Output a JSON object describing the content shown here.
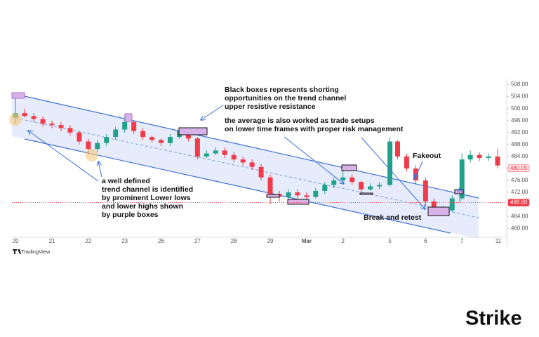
{
  "chart_data": {
    "type": "candlestick",
    "xlim": [
      -0.1,
      13.5
    ],
    "ylim": [
      457,
      510
    ],
    "xticks": [
      {
        "value": 0,
        "label": "20"
      },
      {
        "value": 1,
        "label": "21"
      },
      {
        "value": 2,
        "label": "22"
      },
      {
        "value": 3,
        "label": "23"
      },
      {
        "value": 4,
        "label": "26"
      },
      {
        "value": 5,
        "label": "27"
      },
      {
        "value": 6,
        "label": "28"
      },
      {
        "value": 7,
        "label": "29"
      },
      {
        "value": 8,
        "label": "Mar"
      },
      {
        "value": 9,
        "label": "2"
      },
      {
        "value": 10.29,
        "label": "5"
      },
      {
        "value": 11.27,
        "label": "6"
      },
      {
        "value": 12.27,
        "label": "7"
      },
      {
        "value": 13.27,
        "label": "11"
      }
    ],
    "yticks": [
      {
        "value": 460,
        "label": "460.00"
      },
      {
        "value": 464,
        "label": "464.00"
      },
      {
        "value": 468,
        "label": "468.00"
      },
      {
        "value": 472,
        "label": "472.00"
      },
      {
        "value": 476,
        "label": "476.00"
      },
      {
        "value": 480,
        "label": "480.00"
      },
      {
        "value": 484,
        "label": "484.00"
      },
      {
        "value": 488,
        "label": "488.00"
      },
      {
        "value": 492,
        "label": "492.00"
      },
      {
        "value": 496,
        "label": "496.00"
      },
      {
        "value": 500,
        "label": "500.00"
      },
      {
        "value": 504,
        "label": "504.00"
      },
      {
        "value": 508,
        "label": "508.00"
      }
    ],
    "up_color": "#22a08a",
    "down_color": "#ef3b4a",
    "candles": {
      "x": [
        0,
        0.25,
        0.5,
        0.75,
        1,
        1.25,
        1.5,
        1.75,
        2,
        2.25,
        2.5,
        2.75,
        3,
        3.25,
        3.5,
        3.75,
        4,
        4.25,
        4.5,
        4.75,
        5,
        5.25,
        5.5,
        5.75,
        6,
        6.25,
        6.5,
        6.75,
        7,
        7.25,
        7.5,
        7.75,
        8,
        8.25,
        8.5,
        8.75,
        9,
        9.25,
        9.5,
        9.75,
        10,
        10.29,
        10.5,
        10.75,
        11,
        11.27,
        11.5,
        11.75,
        12,
        12.27,
        12.5,
        12.75,
        13,
        13.25
      ],
      "open": [
        497,
        498.5,
        497.5,
        496.5,
        495,
        494.5,
        493.5,
        492,
        489,
        486.5,
        488.5,
        490.5,
        493,
        495.5,
        492.5,
        490.5,
        489.5,
        488.5,
        490.5,
        492.5,
        490,
        484,
        485,
        486,
        484.5,
        483,
        482,
        480.5,
        477,
        471.5,
        470.5,
        472,
        471,
        470.5,
        472.5,
        474.5,
        476,
        477,
        475.5,
        473,
        474,
        474.5,
        489,
        484,
        480,
        476,
        469,
        466.5,
        466,
        470,
        483,
        484.5,
        483.5,
        484
      ],
      "high": [
        503.5,
        500,
        498.5,
        497.5,
        496,
        495.5,
        494.5,
        492.5,
        490,
        489.5,
        491.5,
        494,
        497.5,
        496,
        493.5,
        491,
        490,
        491.5,
        493.5,
        493,
        490.5,
        486,
        487,
        487,
        485.5,
        484,
        483,
        481.5,
        478,
        472.5,
        473,
        473,
        472,
        473.5,
        475.5,
        477,
        480.5,
        478,
        476,
        475,
        475.5,
        490.5,
        489.5,
        485,
        481,
        477,
        470,
        467.5,
        471,
        485,
        486,
        485.5,
        485,
        486.5
      ],
      "low": [
        495,
        497,
        495.5,
        494,
        493.5,
        492.5,
        491,
        488,
        484.5,
        485.5,
        487.5,
        489.5,
        492,
        491.5,
        489.5,
        488.5,
        487.5,
        487.5,
        490,
        489,
        483,
        483.5,
        484.5,
        483.5,
        482,
        481,
        479.5,
        476,
        468,
        469,
        469.5,
        470,
        469,
        470,
        471.5,
        473.5,
        475,
        474.5,
        472,
        472.5,
        473,
        474,
        483,
        479,
        475,
        467.5,
        465.5,
        465,
        465.5,
        469.5,
        482,
        482.5,
        482.5,
        480
      ],
      "close": [
        498.5,
        497.5,
        496.5,
        495,
        494.5,
        493.5,
        492,
        489,
        486.5,
        488.5,
        490.5,
        493,
        495.5,
        492.5,
        490.5,
        489.5,
        488.5,
        490.5,
        492.5,
        490,
        484,
        485,
        486,
        484.5,
        483,
        482,
        480.5,
        477,
        471.5,
        470.5,
        472,
        471,
        470.5,
        472.5,
        474.5,
        476,
        477,
        475.5,
        473,
        474,
        474.5,
        489,
        484,
        480,
        476,
        469,
        466.5,
        466,
        470,
        483,
        484.5,
        483.5,
        484,
        481
      ]
    },
    "price_labels": [
      {
        "value": 480.05,
        "label": "480.05",
        "color": "#ef3b4a",
        "background": "#fde3e6"
      },
      {
        "value": 468.6,
        "label": "468.60",
        "color": "#ffffff",
        "background": "#ef3b4a"
      }
    ],
    "annotations": [
      [
        "Black boxes represents shorting",
        "opportunities on the trend channel",
        "upper resistive resistance"
      ],
      [
        "the average is also worked as trade setups",
        "on lower time frames with proper risk management"
      ],
      [
        "Fakeout"
      ],
      [
        "a well defined",
        "trend channel is identified",
        "by prominent Lower lows",
        "and lower highs shown",
        "by purple boxes"
      ],
      [
        "Break and retest"
      ]
    ],
    "source": "TradingView",
    "brand": "Strike"
  }
}
